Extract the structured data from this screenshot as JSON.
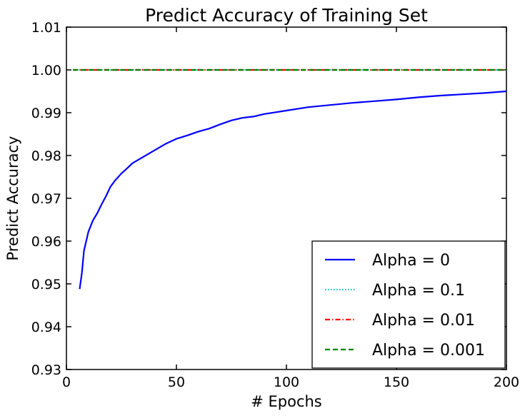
{
  "chart_data": {
    "type": "line",
    "title": "Predict Accuracy of Training Set",
    "xlabel": "# Epochs",
    "ylabel": "Predict Accuracy",
    "xlim": [
      0,
      200
    ],
    "ylim": [
      0.93,
      1.01
    ],
    "xticks": [
      0,
      50,
      100,
      150,
      200
    ],
    "xtick_labels": [
      "0",
      "50",
      "100",
      "150",
      "200"
    ],
    "yticks": [
      0.93,
      0.94,
      0.95,
      0.96,
      0.97,
      0.98,
      0.99,
      1.0,
      1.01
    ],
    "ytick_labels": [
      "0.93",
      "0.94",
      "0.95",
      "0.96",
      "0.97",
      "0.98",
      "0.99",
      "1.00",
      "1.01"
    ],
    "grid": false,
    "legend_position": "lower-right",
    "series": [
      {
        "name": "Alpha = 0",
        "color": "#0000ff",
        "style": "solid",
        "x": [
          6,
          7,
          8,
          10,
          12,
          14,
          16,
          18,
          20,
          22,
          25,
          28,
          30,
          35,
          40,
          45,
          50,
          55,
          60,
          65,
          70,
          75,
          80,
          85,
          90,
          95,
          100,
          110,
          120,
          130,
          140,
          150,
          160,
          170,
          180,
          190,
          200
        ],
        "y": [
          0.9488,
          0.9525,
          0.9578,
          0.9622,
          0.9648,
          0.9665,
          0.9686,
          0.9705,
          0.9727,
          0.9741,
          0.9758,
          0.9772,
          0.9782,
          0.9797,
          0.9812,
          0.9827,
          0.9839,
          0.9847,
          0.9856,
          0.9863,
          0.9873,
          0.9882,
          0.9888,
          0.9891,
          0.9897,
          0.9901,
          0.9905,
          0.9913,
          0.9918,
          0.9923,
          0.9927,
          0.9931,
          0.9936,
          0.994,
          0.9943,
          0.9946,
          0.995
        ]
      },
      {
        "name": "Alpha = 0.1",
        "color": "#00bfbf",
        "style": "dotted",
        "x": [
          3,
          200
        ],
        "y": [
          1.0,
          1.0
        ]
      },
      {
        "name": "Alpha = 0.01",
        "color": "#ff0000",
        "style": "dashdot",
        "x": [
          3,
          200
        ],
        "y": [
          1.0,
          1.0
        ]
      },
      {
        "name": "Alpha = 0.001",
        "color": "#008000",
        "style": "dashed",
        "x": [
          3,
          200
        ],
        "y": [
          1.0,
          1.0
        ]
      }
    ]
  }
}
